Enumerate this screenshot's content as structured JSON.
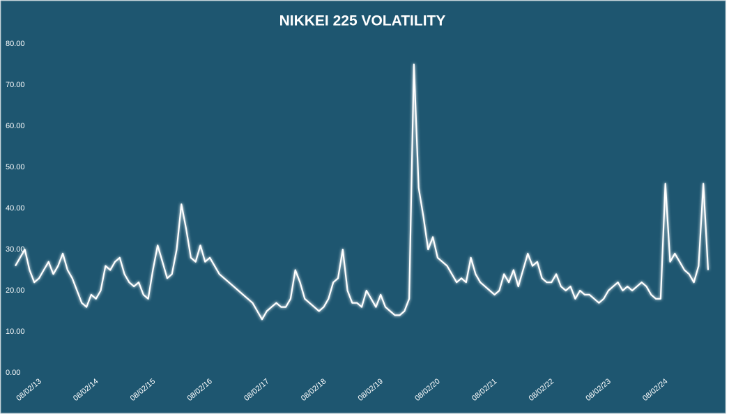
{
  "chart_data": {
    "type": "line",
    "title": "NIKKEI 225 VOLATILITY",
    "categories": [
      null,
      null,
      null,
      null,
      null,
      "08/02/13",
      null,
      null,
      null,
      null,
      null,
      null,
      null,
      null,
      null,
      null,
      null,
      "08/02/14",
      null,
      null,
      null,
      null,
      null,
      null,
      null,
      null,
      null,
      null,
      null,
      "08/02/15",
      null,
      null,
      null,
      null,
      null,
      null,
      null,
      null,
      null,
      null,
      null,
      "08/02/16",
      null,
      null,
      null,
      null,
      null,
      null,
      null,
      null,
      null,
      null,
      null,
      "08/02/17",
      null,
      null,
      null,
      null,
      null,
      null,
      null,
      null,
      null,
      null,
      null,
      "08/02/18",
      null,
      null,
      null,
      null,
      null,
      null,
      null,
      null,
      null,
      null,
      null,
      "08/02/19",
      null,
      null,
      null,
      null,
      null,
      null,
      null,
      null,
      null,
      null,
      null,
      "08/02/20",
      null,
      null,
      null,
      null,
      null,
      null,
      null,
      null,
      null,
      null,
      null,
      "08/02/21",
      null,
      null,
      null,
      null,
      null,
      null,
      null,
      null,
      null,
      null,
      null,
      "08/02/22",
      null,
      null,
      null,
      null,
      null,
      null,
      null,
      null,
      null,
      null,
      null,
      "08/02/23",
      null,
      null,
      null,
      null,
      null,
      null,
      null,
      null,
      null,
      null,
      null,
      "08/02/24",
      null,
      null,
      null,
      null,
      null,
      null,
      null,
      null,
      null
    ],
    "values": [
      26,
      28,
      30,
      25,
      22,
      23,
      25,
      27,
      24,
      26,
      29,
      25,
      23,
      20,
      17,
      16,
      19,
      18,
      20,
      26,
      25,
      27,
      28,
      24,
      22,
      21,
      22,
      19,
      18,
      25,
      31,
      27,
      23,
      24,
      30,
      41,
      35,
      28,
      27,
      31,
      27,
      28,
      26,
      24,
      23,
      22,
      21,
      20,
      19,
      18,
      17,
      15,
      13,
      15,
      16,
      17,
      16,
      16,
      18,
      25,
      22,
      18,
      17,
      16,
      15,
      16,
      18,
      22,
      23,
      30,
      20,
      17,
      17,
      16,
      20,
      18,
      16,
      19,
      16,
      15,
      14,
      14,
      15,
      18,
      75,
      45,
      38,
      30,
      33,
      28,
      27,
      26,
      24,
      22,
      23,
      22,
      28,
      24,
      22,
      21,
      20,
      19,
      20,
      24,
      22,
      25,
      21,
      25,
      29,
      26,
      27,
      23,
      22,
      22,
      24,
      21,
      20,
      21,
      18,
      20,
      19,
      19,
      18,
      17,
      18,
      20,
      21,
      22,
      20,
      21,
      20,
      21,
      22,
      21,
      19,
      18,
      18,
      46,
      27,
      29,
      27,
      25,
      24,
      22,
      26,
      46,
      25
    ],
    "color": "#ffffff",
    "ylim": [
      0,
      80
    ],
    "yticks": [
      {
        "value": 0,
        "label": "0.00"
      },
      {
        "value": 10,
        "label": "10.00"
      },
      {
        "value": 20,
        "label": "20.00"
      },
      {
        "value": 30,
        "label": "30.00"
      },
      {
        "value": 40,
        "label": "40.00"
      },
      {
        "value": 50,
        "label": "50.00"
      },
      {
        "value": 60,
        "label": "60.00"
      },
      {
        "value": 70,
        "label": "70.00"
      },
      {
        "value": 80,
        "label": "80.00"
      }
    ],
    "grid": false
  }
}
